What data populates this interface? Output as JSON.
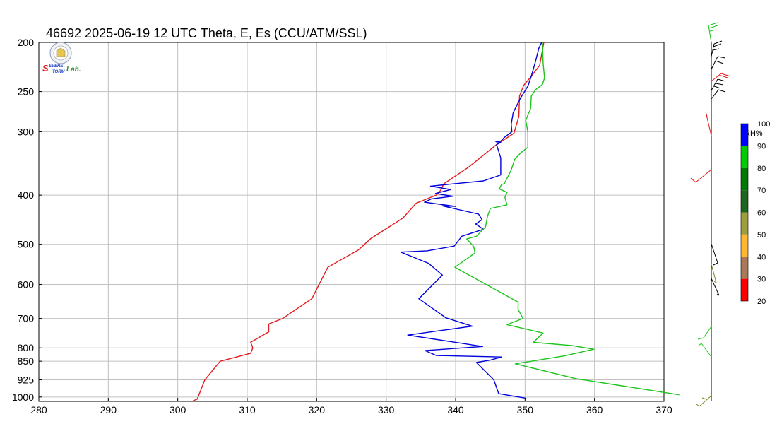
{
  "chart_data": {
    "type": "line",
    "title": "46692  2025-06-19 12 UTC  Theta, E, Es (CCU/ATM/SSL)",
    "xlim": [
      280,
      370
    ],
    "ylim": [
      1020,
      200
    ],
    "y_scale": "log",
    "grid": true,
    "x_ticks": [
      280,
      290,
      300,
      310,
      320,
      330,
      340,
      350,
      360,
      370
    ],
    "y_ticks": [
      200,
      250,
      300,
      400,
      500,
      600,
      700,
      800,
      850,
      925,
      1000
    ],
    "series": [
      {
        "color": "#e41a1c",
        "points": [
          [
            302.2,
            1017
          ],
          [
            302.8,
            1010
          ],
          [
            303.9,
            925
          ],
          [
            306.1,
            850
          ],
          [
            310.5,
            820
          ],
          [
            310.8,
            800
          ],
          [
            310.5,
            780
          ],
          [
            313.1,
            744
          ],
          [
            313.1,
            718
          ],
          [
            315.1,
            700
          ],
          [
            319.3,
            640
          ],
          [
            321.6,
            555
          ],
          [
            326.0,
            513
          ],
          [
            327.8,
            487
          ],
          [
            332.4,
            444
          ],
          [
            334.3,
            415
          ],
          [
            337.2,
            400
          ],
          [
            337.8,
            392
          ],
          [
            338.3,
            380
          ],
          [
            341.9,
            352
          ],
          [
            345.9,
            318
          ],
          [
            348.4,
            302
          ],
          [
            349.1,
            280
          ],
          [
            349.2,
            255
          ],
          [
            349.8,
            243
          ],
          [
            350.7,
            235
          ],
          [
            352.1,
            222
          ],
          [
            352.7,
            200
          ]
        ]
      },
      {
        "color": "#0000dd",
        "points": [
          [
            350.1,
            1005
          ],
          [
            346.2,
            985
          ],
          [
            345.5,
            925
          ],
          [
            343.0,
            855
          ],
          [
            345.1,
            845
          ],
          [
            346.6,
            834
          ],
          [
            337.2,
            828
          ],
          [
            335.6,
            810
          ],
          [
            343.9,
            795
          ],
          [
            333.1,
            755
          ],
          [
            342.4,
            725
          ],
          [
            338.6,
            698
          ],
          [
            334.7,
            640
          ],
          [
            338.1,
            575
          ],
          [
            336.1,
            545
          ],
          [
            332.1,
            518
          ],
          [
            335.9,
            515
          ],
          [
            339.8,
            504
          ],
          [
            340.9,
            482
          ],
          [
            344.0,
            467
          ],
          [
            342.9,
            456
          ],
          [
            343.8,
            447
          ],
          [
            343.3,
            436
          ],
          [
            338.1,
            420
          ],
          [
            340.0,
            421
          ],
          [
            335.5,
            413
          ],
          [
            336.5,
            407
          ],
          [
            339.6,
            402
          ],
          [
            337.1,
            397
          ],
          [
            339.3,
            390
          ],
          [
            336.4,
            384
          ],
          [
            338.8,
            381
          ],
          [
            344.0,
            375
          ],
          [
            346.5,
            365
          ],
          [
            346.5,
            338
          ],
          [
            345.9,
            318
          ],
          [
            346.5,
            315
          ],
          [
            345.8,
            314
          ],
          [
            346.5,
            313
          ],
          [
            347.0,
            308
          ],
          [
            348.1,
            300
          ],
          [
            348.0,
            290
          ],
          [
            348.3,
            275
          ],
          [
            349.3,
            258
          ],
          [
            350.4,
            244
          ],
          [
            350.9,
            233
          ],
          [
            351.5,
            218
          ],
          [
            352.0,
            205
          ],
          [
            352.4,
            200
          ]
        ]
      },
      {
        "color": "#1cc41c",
        "points": [
          [
            372.2,
            990
          ],
          [
            357.3,
            920
          ],
          [
            348.6,
            860
          ],
          [
            355.6,
            830
          ],
          [
            359.9,
            805
          ],
          [
            356.8,
            792
          ],
          [
            351.2,
            780
          ],
          [
            352.6,
            748
          ],
          [
            347.4,
            720
          ],
          [
            349.7,
            700
          ],
          [
            349.0,
            672
          ],
          [
            349.0,
            650
          ],
          [
            339.9,
            555
          ],
          [
            342.8,
            520
          ],
          [
            342.6,
            505
          ],
          [
            341.6,
            488
          ],
          [
            343.0,
            482
          ],
          [
            344.3,
            462
          ],
          [
            344.6,
            440
          ],
          [
            345.0,
            425
          ],
          [
            347.4,
            418
          ],
          [
            347.1,
            404
          ],
          [
            347.4,
            395
          ],
          [
            346.3,
            389
          ],
          [
            346.6,
            381
          ],
          [
            347.0,
            380
          ],
          [
            348.0,
            357
          ],
          [
            348.5,
            340
          ],
          [
            349.4,
            330
          ],
          [
            350.4,
            322
          ],
          [
            350.4,
            300
          ],
          [
            350.1,
            285
          ],
          [
            350.8,
            270
          ],
          [
            350.9,
            255
          ],
          [
            351.5,
            248
          ],
          [
            352.5,
            242
          ],
          [
            352.8,
            235
          ],
          [
            352.6,
            220
          ],
          [
            352.5,
            200
          ]
        ]
      }
    ],
    "colorbar": {
      "title": "RH%",
      "labels": [
        "100",
        "90",
        "80",
        "70",
        "60",
        "50",
        "40",
        "30",
        "20"
      ],
      "colors": [
        "#0000ff",
        "#00cc00",
        "#007a00",
        "#1e661e",
        "#9e9e3a",
        "#ffb82e",
        "#a87a5a",
        "#ff0000",
        "#000000"
      ]
    }
  },
  "logo": {
    "text_1": "S",
    "text_2": "EVERE",
    "text_3": "TORM",
    "text_4": "Lab."
  }
}
